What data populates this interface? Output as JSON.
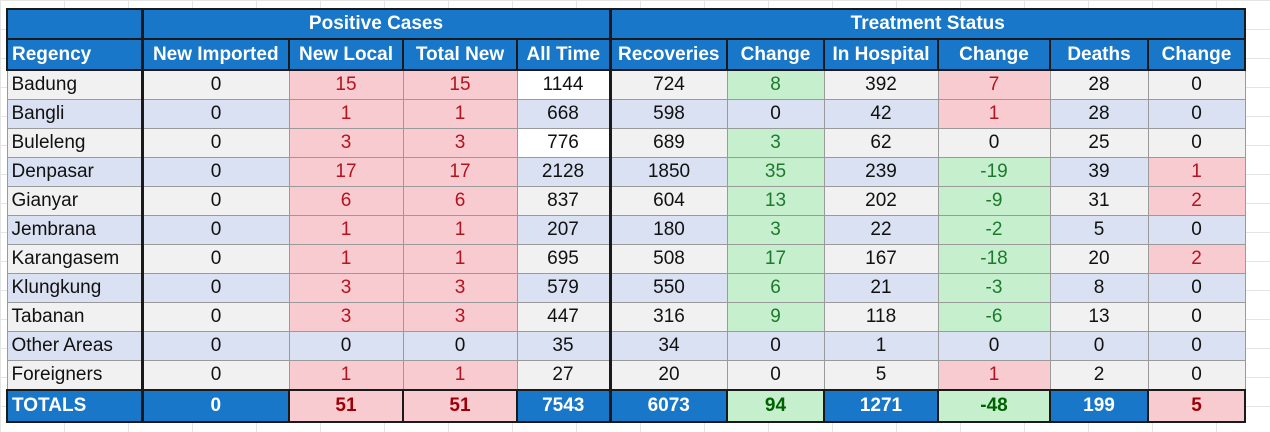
{
  "groups": {
    "positive": "Positive Cases",
    "treatment": "Treatment Status"
  },
  "headers": [
    "Regency",
    "New Imported",
    "New Local",
    "Total New",
    "All Time",
    "Recoveries",
    "Change",
    "In Hospital",
    "Change",
    "Deaths",
    "Change"
  ],
  "rows": [
    [
      "Badung",
      "0",
      "15",
      "15",
      "1144",
      "724",
      "8",
      "392",
      "7",
      "28",
      "0"
    ],
    [
      "Bangli",
      "0",
      "1",
      "1",
      "668",
      "598",
      "0",
      "42",
      "1",
      "28",
      "0"
    ],
    [
      "Buleleng",
      "0",
      "3",
      "3",
      "776",
      "689",
      "3",
      "62",
      "0",
      "25",
      "0"
    ],
    [
      "Denpasar",
      "0",
      "17",
      "17",
      "2128",
      "1850",
      "35",
      "239",
      "-19",
      "39",
      "1"
    ],
    [
      "Gianyar",
      "0",
      "6",
      "6",
      "837",
      "604",
      "13",
      "202",
      "-9",
      "31",
      "2"
    ],
    [
      "Jembrana",
      "0",
      "1",
      "1",
      "207",
      "180",
      "3",
      "22",
      "-2",
      "5",
      "0"
    ],
    [
      "Karangasem",
      "0",
      "1",
      "1",
      "695",
      "508",
      "17",
      "167",
      "-18",
      "20",
      "2"
    ],
    [
      "Klungkung",
      "0",
      "3",
      "3",
      "579",
      "550",
      "6",
      "21",
      "-3",
      "8",
      "0"
    ],
    [
      "Tabanan",
      "0",
      "3",
      "3",
      "447",
      "316",
      "9",
      "118",
      "-6",
      "13",
      "0"
    ],
    [
      "Other Areas",
      "0",
      "0",
      "0",
      "35",
      "34",
      "0",
      "1",
      "0",
      "0",
      "0"
    ],
    [
      "Foreigners",
      "0",
      "1",
      "1",
      "27",
      "20",
      "0",
      "5",
      "1",
      "2",
      "0"
    ]
  ],
  "totals": [
    "TOTALS",
    "0",
    "51",
    "51",
    "7543",
    "6073",
    "94",
    "1271",
    "-48",
    "199",
    "5"
  ],
  "colors": {
    "header_bg": "#1877c8",
    "highlight_pink": "#f8cbd0",
    "highlight_green": "#c6efce",
    "row_alt": "#d9e1f2"
  }
}
